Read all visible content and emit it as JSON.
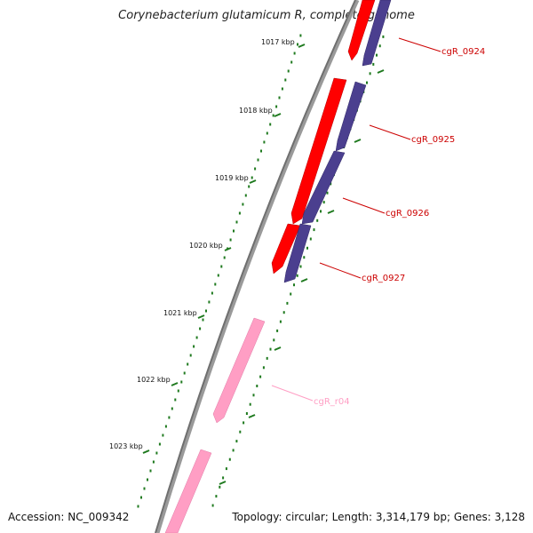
{
  "title": "Corynebacterium glutamicum R, complete genome",
  "accession_text": "Accession: NC_009342",
  "summary_text": "Topology: circular; Length: 3,314,179 bp; Genes: 3,128",
  "colors": {
    "backbone": "#808080",
    "tick": "#1f7a1f",
    "forward_gene": "#ff0000",
    "reverse_gene": "#4b3f8f",
    "rna_gene": "#ff9ec4",
    "label_red": "#cc0000",
    "label_pink": "#ff9ec4"
  },
  "scale_ticks": [
    "1017 kbp",
    "1018 kbp",
    "1019 kbp",
    "1020 kbp",
    "1021 kbp",
    "1022 kbp",
    "1023 kbp"
  ],
  "genes": [
    {
      "name": "cgR_0924",
      "strand": "reverse",
      "type": "CDS"
    },
    {
      "name": "cgR_0925",
      "strand": "reverse",
      "type": "CDS"
    },
    {
      "name": "cgR_0926",
      "strand": "reverse",
      "type": "CDS"
    },
    {
      "name": "cgR_0927",
      "strand": "reverse",
      "type": "CDS"
    },
    {
      "name": "cgR_r04",
      "strand": "forward",
      "type": "rRNA"
    }
  ]
}
